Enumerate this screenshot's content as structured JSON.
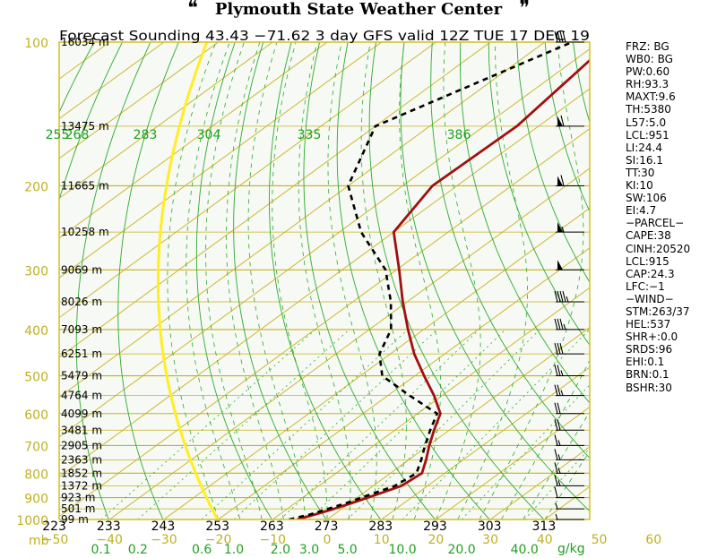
{
  "header": {
    "title": "Plymouth State Weather Center"
  },
  "chart_data": {
    "type": "line",
    "subtitle": "Forecast Sounding 43.43 −71.62  3 day GFS valid 12Z TUE 17 DEC 19",
    "pressure_ticks": [
      "100",
      "200",
      "300",
      "400",
      "500",
      "600",
      "700",
      "800",
      "900",
      "1000"
    ],
    "pressure_tick_values": [
      100,
      200,
      300,
      400,
      500,
      600,
      700,
      800,
      900,
      1000
    ],
    "pressure_unit": "mb",
    "height_levels": [
      {
        "p": 100,
        "label": "16034 m"
      },
      {
        "p": 150,
        "label": "13475 m"
      },
      {
        "p": 200,
        "label": "11665 m"
      },
      {
        "p": 250,
        "label": "10258 m"
      },
      {
        "p": 300,
        "label": "9069 m"
      },
      {
        "p": 350,
        "label": "8026 m"
      },
      {
        "p": 400,
        "label": "7093 m"
      },
      {
        "p": 450,
        "label": "6251 m"
      },
      {
        "p": 500,
        "label": "5479 m"
      },
      {
        "p": 550,
        "label": "4764 m"
      },
      {
        "p": 600,
        "label": "4099 m"
      },
      {
        "p": 650,
        "label": "3481 m"
      },
      {
        "p": 700,
        "label": "2905 m"
      },
      {
        "p": 750,
        "label": "2363 m"
      },
      {
        "p": 800,
        "label": "1852 m"
      },
      {
        "p": 850,
        "label": "1372 m"
      },
      {
        "p": 900,
        "label": "923 m"
      },
      {
        "p": 950,
        "label": "501 m"
      },
      {
        "p": 1000,
        "label": "99 m"
      }
    ],
    "temperature_ticks": [
      "−50",
      "−40",
      "−30",
      "−20",
      "−10",
      "0",
      "10",
      "20",
      "30",
      "40",
      "50",
      "60"
    ],
    "temperature_tick_values": [
      -50,
      -40,
      -30,
      -20,
      -10,
      0,
      10,
      20,
      30,
      40,
      50,
      60
    ],
    "mixing_ratio_ticks": [
      "0.1",
      "0.2",
      "0.6",
      "1.0",
      "2.0",
      "3.0",
      "5.0",
      "10.0",
      "20.0",
      "40.0"
    ],
    "mixing_ratio_values": [
      0.1,
      0.2,
      0.6,
      1.0,
      2.0,
      3.0,
      5.0,
      10.0,
      20.0,
      40.0
    ],
    "mixing_ratio_unit": "g/kg",
    "theta_ticks": [
      "223",
      "233",
      "243",
      "253",
      "263",
      "273",
      "283",
      "293",
      "303",
      "313"
    ],
    "theta_values": [
      223,
      233,
      243,
      253,
      263,
      273,
      283,
      293,
      303,
      313
    ],
    "theta_e_ticks": [
      "255",
      "268",
      "283",
      "304",
      "335",
      "386"
    ],
    "theta_e_values": [
      255,
      268,
      283,
      304,
      335,
      386
    ],
    "temperature_profile": [
      {
        "p": 1000,
        "t": -5.5
      },
      {
        "p": 975,
        "t": -3.4
      },
      {
        "p": 950,
        "t": -1.4
      },
      {
        "p": 925,
        "t": 0.3
      },
      {
        "p": 900,
        "t": 2.0
      },
      {
        "p": 850,
        "t": 5.2
      },
      {
        "p": 800,
        "t": 5.8
      },
      {
        "p": 750,
        "t": 3.2
      },
      {
        "p": 700,
        "t": 0.2
      },
      {
        "p": 650,
        "t": -2.8
      },
      {
        "p": 600,
        "t": -5.8
      },
      {
        "p": 550,
        "t": -11.5
      },
      {
        "p": 500,
        "t": -18.3
      },
      {
        "p": 450,
        "t": -25.6
      },
      {
        "p": 400,
        "t": -32.9
      },
      {
        "p": 350,
        "t": -40.8
      },
      {
        "p": 300,
        "t": -49.5
      },
      {
        "p": 250,
        "t": -60.0
      },
      {
        "p": 200,
        "t": -64.5
      },
      {
        "p": 150,
        "t": -64.0
      },
      {
        "p": 100,
        "t": -68.0
      }
    ],
    "dewpoint_profile": [
      {
        "p": 1000,
        "t": -7.0
      },
      {
        "p": 975,
        "t": -4.3
      },
      {
        "p": 950,
        "t": -2.5
      },
      {
        "p": 925,
        "t": -0.7
      },
      {
        "p": 900,
        "t": 0.8
      },
      {
        "p": 850,
        "t": 4.0
      },
      {
        "p": 800,
        "t": 4.8
      },
      {
        "p": 750,
        "t": 2.3
      },
      {
        "p": 700,
        "t": -0.6
      },
      {
        "p": 650,
        "t": -3.5
      },
      {
        "p": 600,
        "t": -6.4
      },
      {
        "p": 550,
        "t": -16.0
      },
      {
        "p": 500,
        "t": -26.0
      },
      {
        "p": 450,
        "t": -32.0
      },
      {
        "p": 400,
        "t": -36.0
      },
      {
        "p": 350,
        "t": -43.0
      },
      {
        "p": 300,
        "t": -52.0
      },
      {
        "p": 250,
        "t": -66.0
      },
      {
        "p": 200,
        "t": -80.0
      },
      {
        "p": 150,
        "t": -90.0
      },
      {
        "p": 100,
        "t": -75.0
      }
    ],
    "wind_profile": [
      {
        "p": 100,
        "speed": 40
      },
      {
        "p": 150,
        "speed": 60
      },
      {
        "p": 200,
        "speed": 60
      },
      {
        "p": 250,
        "speed": 55
      },
      {
        "p": 300,
        "speed": 50
      },
      {
        "p": 350,
        "speed": 45
      },
      {
        "p": 400,
        "speed": 35
      },
      {
        "p": 450,
        "speed": 30
      },
      {
        "p": 500,
        "speed": 25
      },
      {
        "p": 550,
        "speed": 25
      },
      {
        "p": 600,
        "speed": 20
      },
      {
        "p": 650,
        "speed": 20
      },
      {
        "p": 700,
        "speed": 15
      },
      {
        "p": 750,
        "speed": 15
      },
      {
        "p": 800,
        "speed": 15
      },
      {
        "p": 850,
        "speed": 15
      },
      {
        "p": 900,
        "speed": 10
      },
      {
        "p": 950,
        "speed": 5
      },
      {
        "p": 1000,
        "speed": 5
      }
    ],
    "colors": {
      "background": "#f6f9f4",
      "border": "#d4c020",
      "isobar": "#c8b21c",
      "isotherm": "#c8b21c",
      "dry_adiabat": "#2eaa2e",
      "moist_adiabat": "#2eaa2e",
      "mixing_ratio": "#2eaa2e",
      "yellow_curve": "#ffee22",
      "temperature": "#a01010",
      "dewpoint": "#000000",
      "pressure_labels": "#c0b020",
      "green_labels": "#20a020"
    }
  },
  "indices": [
    "FRZ: BG",
    "WB0: BG",
    "PW:0.60",
    "RH:93.3",
    "MAXT:9.6",
    "TH:5380",
    "L57:5.0",
    "LCL:951",
    "LI:24.4",
    "SI:16.1",
    "TT:30",
    "KI:10",
    "SW:106",
    "EI:4.7",
    "−PARCEL−",
    "CAPE:38",
    "CINH:20520",
    "LCL:915",
    "CAP:24.3",
    "LFC:−1",
    "−WIND−",
    "STM:263/37",
    "HEL:537",
    "SHR+:0.0",
    "SRDS:96",
    "EHI:0.1",
    "BRN:0.1",
    "BSHR:30"
  ]
}
